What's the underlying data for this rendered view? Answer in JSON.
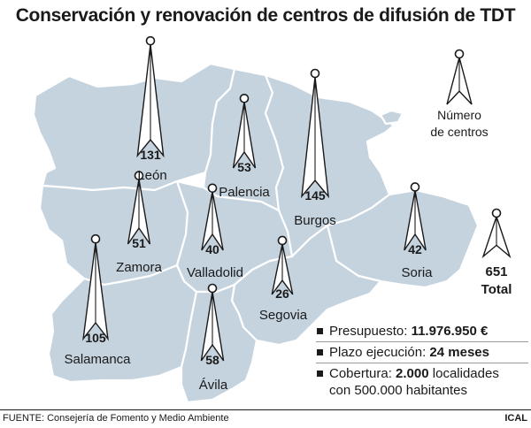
{
  "title": "Conservación y renovación de centros de difusión de TDT",
  "legend": {
    "line1": "Número",
    "line2": "de centros"
  },
  "provinces": [
    {
      "name": "León",
      "centers": 131
    },
    {
      "name": "Palencia",
      "centers": 53
    },
    {
      "name": "Burgos",
      "centers": 145
    },
    {
      "name": "Zamora",
      "centers": 51
    },
    {
      "name": "Valladolid",
      "centers": 40
    },
    {
      "name": "Soria",
      "centers": 42
    },
    {
      "name": "Segovia",
      "centers": 26
    },
    {
      "name": "Salamanca",
      "centers": 105
    },
    {
      "name": "Ávila",
      "centers": 58
    }
  ],
  "total": {
    "value": "651",
    "label": "Total"
  },
  "info": {
    "budget_label": "Presupuesto:",
    "budget_value": "11.976.950 €",
    "term_label": "Plazo ejecución:",
    "term_value": "24 meses",
    "coverage_label": "Cobertura:",
    "coverage_value": "2.000",
    "coverage_rest": "localidades",
    "coverage_line2": "con 500.000 habitantes"
  },
  "footer": {
    "source": "FUENTE: Consejería de Fomento y Medio Ambiente",
    "brand": "ICAL"
  },
  "colors": {
    "province_fill": "#c5d3df",
    "total_tower_fill": "#7b93a8",
    "ink": "#1a1a1a"
  },
  "icons": {
    "tower": "broadcast-tower-icon"
  }
}
